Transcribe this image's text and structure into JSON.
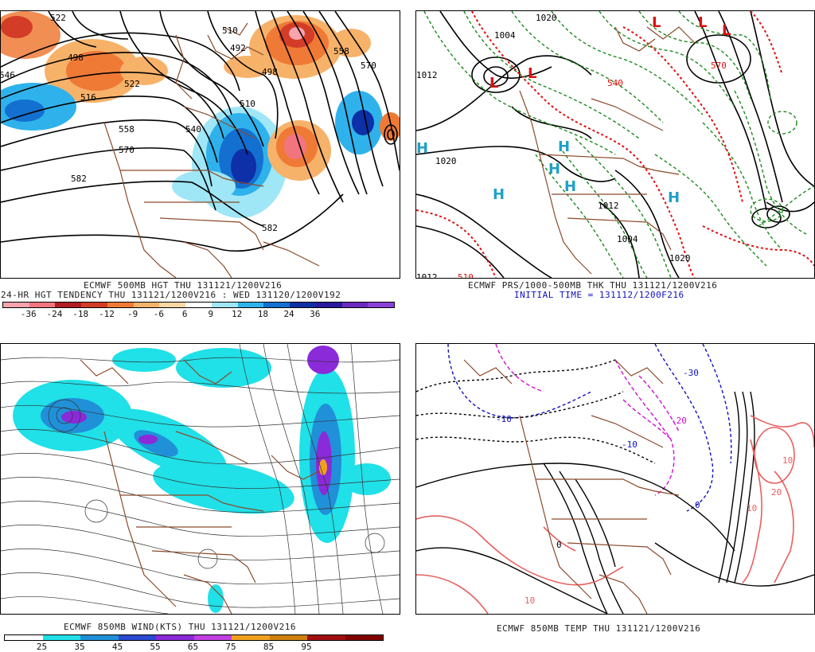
{
  "panels": {
    "top_left": {
      "caption1": "ECMWF 500MB HGT THU 131121/1200V216",
      "caption2": "24-HR HGT TENDENCY THU 131121/1200V216 : WED 131120/1200V192",
      "colorbar": {
        "labels": [
          "-36",
          "-24",
          "-18",
          "-12",
          "-9",
          "-6",
          "6",
          "9",
          "12",
          "18",
          "24",
          "36"
        ],
        "colors": [
          "#f7a4ad",
          "#f2747f",
          "#b01e22",
          "#d33c26",
          "#ef7a36",
          "#f7b26a",
          "#fbd7a5",
          "#ffffff",
          "#9fe6f6",
          "#2fb2ec",
          "#1370d0",
          "#0d2fa8",
          "#2a1aa0",
          "#6a2ac0",
          "#8a40d8"
        ]
      },
      "contour_labels": [
        "522",
        "498",
        "516",
        "522",
        "558",
        "570",
        "582",
        "540",
        "510",
        "498",
        "492",
        "510",
        "558",
        "570",
        "582",
        "546"
      ]
    },
    "top_right": {
      "caption1": "ECMWF PRS/1000-500MB THK THU 131121/1200V216",
      "caption2": "INITIAL TIME = 131112/1200F216",
      "pressure_labels": [
        "1020",
        "1004",
        "1012",
        "1020",
        "1012",
        "1004",
        "1020",
        "1012"
      ],
      "thickness_labels": [
        "510",
        "540",
        "570"
      ],
      "highs": [
        "H",
        "H",
        "H",
        "H",
        "H",
        "H"
      ],
      "lows": [
        "L",
        "L",
        "L",
        "L",
        "L"
      ]
    },
    "bottom_left": {
      "caption1": "ECMWF 850MB WIND(KTS) THU 131121/1200V216",
      "colorbar": {
        "labels": [
          "25",
          "35",
          "45",
          "55",
          "65",
          "75",
          "85",
          "95"
        ],
        "colors": [
          "#ffffff",
          "#20e0e8",
          "#2090d8",
          "#2a4ad0",
          "#8a2ad8",
          "#c040e0",
          "#f0a020",
          "#d08010",
          "#a01010",
          "#800000"
        ]
      }
    },
    "bottom_right": {
      "caption1": "ECMWF 850MB TEMP THU 131121/1200V216",
      "temp_labels": [
        "-30",
        "-20",
        "-10",
        "0",
        "10",
        "10",
        "20",
        "10",
        "0",
        "-10"
      ]
    }
  },
  "colors": {
    "border_brown": "#8b4a2a",
    "contour_black": "#000000",
    "thickness_red": "#e01010",
    "pressure_green": "#1a8a1a",
    "high_cyan": "#20a0c8",
    "temp_blue": "#1010c0",
    "temp_magenta": "#d010d0",
    "temp_salmon": "#e86060"
  }
}
